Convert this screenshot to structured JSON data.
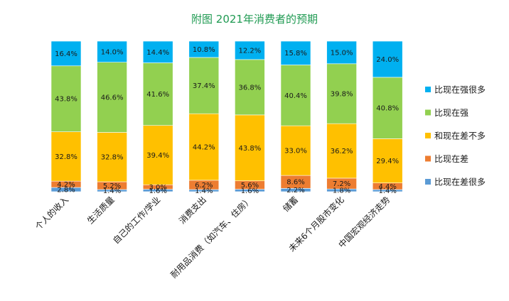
{
  "chart_data": {
    "type": "bar",
    "stacked": true,
    "title": "附图 2021年消费者的预期",
    "categories": [
      "个人的收入",
      "生活质量",
      "自己的工作/学业",
      "消费支出",
      "耐用品消费（如汽车、住房）",
      "储蓄",
      "未来6个月股市变化",
      "中国宏观经济走势"
    ],
    "ylim": [
      0,
      100
    ],
    "grid": false,
    "legend_position": "right",
    "series": [
      {
        "name": "比现在差很多",
        "color": "#5b9bd5",
        "values": [
          2.8,
          1.4,
          1.6,
          1.4,
          1.6,
          2.2,
          1.8,
          1.4
        ],
        "labels": [
          "2.8%",
          "1.4%",
          "1.6%",
          "1.4%",
          "1.6%",
          "2.2%",
          "1.8%",
          "1.4%"
        ]
      },
      {
        "name": "比现在差",
        "color": "#ed7d31",
        "values": [
          4.2,
          5.2,
          3.0,
          6.2,
          5.6,
          8.6,
          7.2,
          4.4
        ],
        "labels": [
          "4.2%",
          "5.2%",
          "3.0%",
          "6.2%",
          "5.6%",
          "8.6%",
          "7.2%",
          "4.4%"
        ]
      },
      {
        "name": "和现在差不多",
        "color": "#ffc000",
        "values": [
          32.8,
          32.8,
          39.4,
          44.2,
          43.8,
          33.0,
          36.2,
          29.4
        ],
        "labels": [
          "32.8%",
          "32.8%",
          "39.4%",
          "44.2%",
          "43.8%",
          "33.0%",
          "36.2%",
          "29.4%"
        ]
      },
      {
        "name": "比现在强",
        "color": "#92d050",
        "values": [
          43.8,
          46.6,
          41.6,
          37.4,
          36.8,
          40.4,
          39.8,
          40.8
        ],
        "labels": [
          "43.8%",
          "46.6%",
          "41.6%",
          "37.4%",
          "36.8%",
          "40.4%",
          "39.8%",
          "40.8%"
        ]
      },
      {
        "name": "比现在强很多",
        "color": "#00b0f0",
        "values": [
          16.4,
          14.0,
          14.4,
          10.8,
          12.2,
          15.8,
          15.0,
          24.0
        ],
        "labels": [
          "16.4%",
          "14.0%",
          "14.4%",
          "10.8%",
          "12.2%",
          "15.8%",
          "15.0%",
          "24.0%"
        ]
      }
    ],
    "legend_order": [
      "比现在强很多",
      "比现在强",
      "和现在差不多",
      "比现在差",
      "比现在差很多"
    ]
  }
}
